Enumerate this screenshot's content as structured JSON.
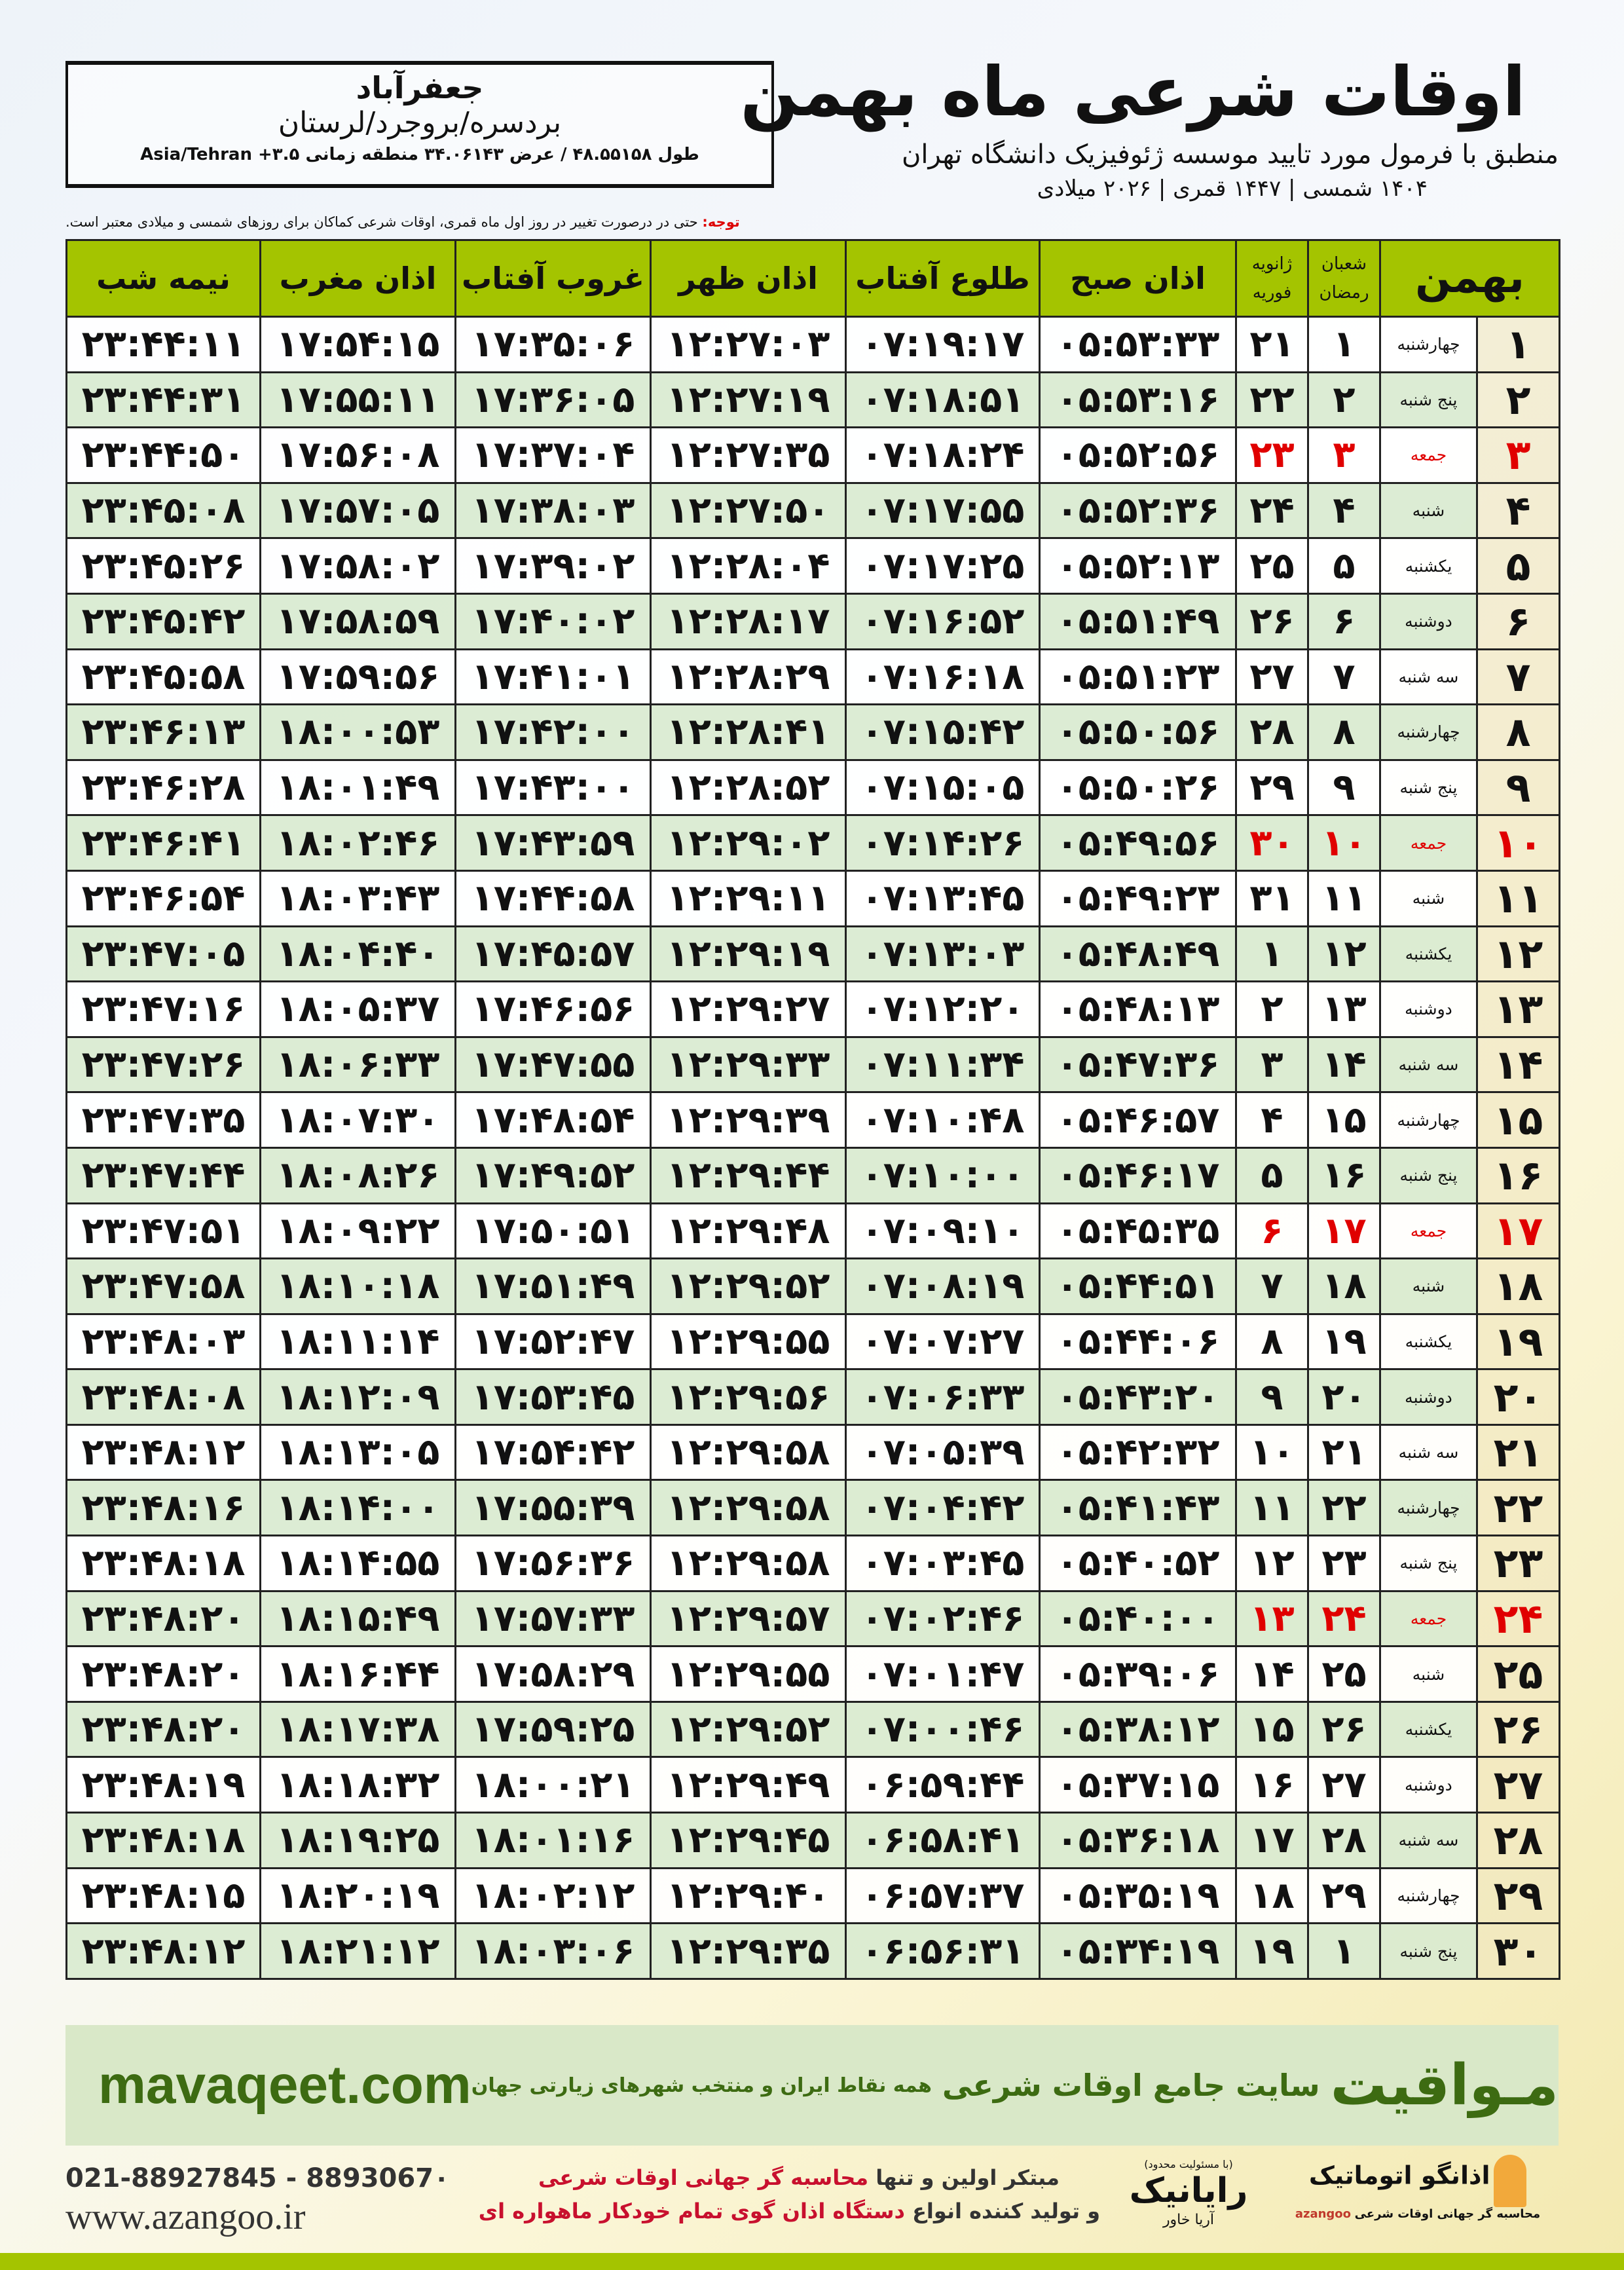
{
  "location": {
    "city": "جعفرآباد",
    "province": "بردسره/بروجرد/لرستان",
    "coords": "طول ۴۸.۵۵۱۵۸ / عرض ۳۴.۰۶۱۴۳ منطقه زمانی ۳.۵+ Asia/Tehran"
  },
  "header": {
    "title": "اوقات شرعی ماه بهمن",
    "subtitle": "منطبق با فرمول مورد تایید موسسه ژئوفیزیک دانشگاه تهران",
    "years": "۱۴۰۴ شمسی | ۱۴۴۷ قمری | ۲۰۲۶ میلادی"
  },
  "note": {
    "label": "توجه:",
    "text": " حتی در درصورت تغییر در روز اول ماه قمری، اوقات شرعی کماکان برای روزهای شمسی و میلادی معتبر است."
  },
  "columns": {
    "month": "بهمن",
    "hijri_1": "شعبان",
    "hijri_2": "رمضان",
    "greg_1": "ژانویه",
    "greg_2": "فوریه",
    "fajr": "اذان صبح",
    "sunrise": "طلوع آفتاب",
    "dhuhr": "اذان ظهر",
    "sunset": "غروب آفتاب",
    "maghrib": "اذان مغرب",
    "midnight": "نیمه شب"
  },
  "holiday_color": "#e00000",
  "header_color": "#a4c400",
  "rows": [
    [
      "۱",
      "چهارشنبه",
      "۱",
      "۲۱",
      "۰۵:۵۳:۳۳",
      "۰۷:۱۹:۱۷",
      "۱۲:۲۷:۰۳",
      "۱۷:۳۵:۰۶",
      "۱۷:۵۴:۱۵",
      "۲۳:۴۴:۱۱"
    ],
    [
      "۲",
      "پنج شنبه",
      "۲",
      "۲۲",
      "۰۵:۵۳:۱۶",
      "۰۷:۱۸:۵۱",
      "۱۲:۲۷:۱۹",
      "۱۷:۳۶:۰۵",
      "۱۷:۵۵:۱۱",
      "۲۳:۴۴:۳۱"
    ],
    [
      "۳",
      "جمعه",
      "۳",
      "۲۳",
      "۰۵:۵۲:۵۶",
      "۰۷:۱۸:۲۴",
      "۱۲:۲۷:۳۵",
      "۱۷:۳۷:۰۴",
      "۱۷:۵۶:۰۸",
      "۲۳:۴۴:۵۰"
    ],
    [
      "۴",
      "شنبه",
      "۴",
      "۲۴",
      "۰۵:۵۲:۳۶",
      "۰۷:۱۷:۵۵",
      "۱۲:۲۷:۵۰",
      "۱۷:۳۸:۰۳",
      "۱۷:۵۷:۰۵",
      "۲۳:۴۵:۰۸"
    ],
    [
      "۵",
      "یکشنبه",
      "۵",
      "۲۵",
      "۰۵:۵۲:۱۳",
      "۰۷:۱۷:۲۵",
      "۱۲:۲۸:۰۴",
      "۱۷:۳۹:۰۲",
      "۱۷:۵۸:۰۲",
      "۲۳:۴۵:۲۶"
    ],
    [
      "۶",
      "دوشنبه",
      "۶",
      "۲۶",
      "۰۵:۵۱:۴۹",
      "۰۷:۱۶:۵۲",
      "۱۲:۲۸:۱۷",
      "۱۷:۴۰:۰۲",
      "۱۷:۵۸:۵۹",
      "۲۳:۴۵:۴۲"
    ],
    [
      "۷",
      "سه شنبه",
      "۷",
      "۲۷",
      "۰۵:۵۱:۲۳",
      "۰۷:۱۶:۱۸",
      "۱۲:۲۸:۲۹",
      "۱۷:۴۱:۰۱",
      "۱۷:۵۹:۵۶",
      "۲۳:۴۵:۵۸"
    ],
    [
      "۸",
      "چهارشنبه",
      "۸",
      "۲۸",
      "۰۵:۵۰:۵۶",
      "۰۷:۱۵:۴۲",
      "۱۲:۲۸:۴۱",
      "۱۷:۴۲:۰۰",
      "۱۸:۰۰:۵۳",
      "۲۳:۴۶:۱۳"
    ],
    [
      "۹",
      "پنج شنبه",
      "۹",
      "۲۹",
      "۰۵:۵۰:۲۶",
      "۰۷:۱۵:۰۵",
      "۱۲:۲۸:۵۲",
      "۱۷:۴۳:۰۰",
      "۱۸:۰۱:۴۹",
      "۲۳:۴۶:۲۸"
    ],
    [
      "۱۰",
      "جمعه",
      "۱۰",
      "۳۰",
      "۰۵:۴۹:۵۶",
      "۰۷:۱۴:۲۶",
      "۱۲:۲۹:۰۲",
      "۱۷:۴۳:۵۹",
      "۱۸:۰۲:۴۶",
      "۲۳:۴۶:۴۱"
    ],
    [
      "۱۱",
      "شنبه",
      "۱۱",
      "۳۱",
      "۰۵:۴۹:۲۳",
      "۰۷:۱۳:۴۵",
      "۱۲:۲۹:۱۱",
      "۱۷:۴۴:۵۸",
      "۱۸:۰۳:۴۳",
      "۲۳:۴۶:۵۴"
    ],
    [
      "۱۲",
      "یکشنبه",
      "۱۲",
      "۱",
      "۰۵:۴۸:۴۹",
      "۰۷:۱۳:۰۳",
      "۱۲:۲۹:۱۹",
      "۱۷:۴۵:۵۷",
      "۱۸:۰۴:۴۰",
      "۲۳:۴۷:۰۵"
    ],
    [
      "۱۳",
      "دوشنبه",
      "۱۳",
      "۲",
      "۰۵:۴۸:۱۳",
      "۰۷:۱۲:۲۰",
      "۱۲:۲۹:۲۷",
      "۱۷:۴۶:۵۶",
      "۱۸:۰۵:۳۷",
      "۲۳:۴۷:۱۶"
    ],
    [
      "۱۴",
      "سه شنبه",
      "۱۴",
      "۳",
      "۰۵:۴۷:۳۶",
      "۰۷:۱۱:۳۴",
      "۱۲:۲۹:۳۳",
      "۱۷:۴۷:۵۵",
      "۱۸:۰۶:۳۳",
      "۲۳:۴۷:۲۶"
    ],
    [
      "۱۵",
      "چهارشنبه",
      "۱۵",
      "۴",
      "۰۵:۴۶:۵۷",
      "۰۷:۱۰:۴۸",
      "۱۲:۲۹:۳۹",
      "۱۷:۴۸:۵۴",
      "۱۸:۰۷:۳۰",
      "۲۳:۴۷:۳۵"
    ],
    [
      "۱۶",
      "پنج شنبه",
      "۱۶",
      "۵",
      "۰۵:۴۶:۱۷",
      "۰۷:۱۰:۰۰",
      "۱۲:۲۹:۴۴",
      "۱۷:۴۹:۵۲",
      "۱۸:۰۸:۲۶",
      "۲۳:۴۷:۴۴"
    ],
    [
      "۱۷",
      "جمعه",
      "۱۷",
      "۶",
      "۰۵:۴۵:۳۵",
      "۰۷:۰۹:۱۰",
      "۱۲:۲۹:۴۸",
      "۱۷:۵۰:۵۱",
      "۱۸:۰۹:۲۲",
      "۲۳:۴۷:۵۱"
    ],
    [
      "۱۸",
      "شنبه",
      "۱۸",
      "۷",
      "۰۵:۴۴:۵۱",
      "۰۷:۰۸:۱۹",
      "۱۲:۲۹:۵۲",
      "۱۷:۵۱:۴۹",
      "۱۸:۱۰:۱۸",
      "۲۳:۴۷:۵۸"
    ],
    [
      "۱۹",
      "یکشنبه",
      "۱۹",
      "۸",
      "۰۵:۴۴:۰۶",
      "۰۷:۰۷:۲۷",
      "۱۲:۲۹:۵۵",
      "۱۷:۵۲:۴۷",
      "۱۸:۱۱:۱۴",
      "۲۳:۴۸:۰۳"
    ],
    [
      "۲۰",
      "دوشنبه",
      "۲۰",
      "۹",
      "۰۵:۴۳:۲۰",
      "۰۷:۰۶:۳۳",
      "۱۲:۲۹:۵۶",
      "۱۷:۵۳:۴۵",
      "۱۸:۱۲:۰۹",
      "۲۳:۴۸:۰۸"
    ],
    [
      "۲۱",
      "سه شنبه",
      "۲۱",
      "۱۰",
      "۰۵:۴۲:۳۲",
      "۰۷:۰۵:۳۹",
      "۱۲:۲۹:۵۸",
      "۱۷:۵۴:۴۲",
      "۱۸:۱۳:۰۵",
      "۲۳:۴۸:۱۲"
    ],
    [
      "۲۲",
      "چهارشنبه",
      "۲۲",
      "۱۱",
      "۰۵:۴۱:۴۳",
      "۰۷:۰۴:۴۲",
      "۱۲:۲۹:۵۸",
      "۱۷:۵۵:۳۹",
      "۱۸:۱۴:۰۰",
      "۲۳:۴۸:۱۶"
    ],
    [
      "۲۳",
      "پنج شنبه",
      "۲۳",
      "۱۲",
      "۰۵:۴۰:۵۲",
      "۰۷:۰۳:۴۵",
      "۱۲:۲۹:۵۸",
      "۱۷:۵۶:۳۶",
      "۱۸:۱۴:۵۵",
      "۲۳:۴۸:۱۸"
    ],
    [
      "۲۴",
      "جمعه",
      "۲۴",
      "۱۳",
      "۰۵:۴۰:۰۰",
      "۰۷:۰۲:۴۶",
      "۱۲:۲۹:۵۷",
      "۱۷:۵۷:۳۳",
      "۱۸:۱۵:۴۹",
      "۲۳:۴۸:۲۰"
    ],
    [
      "۲۵",
      "شنبه",
      "۲۵",
      "۱۴",
      "۰۵:۳۹:۰۶",
      "۰۷:۰۱:۴۷",
      "۱۲:۲۹:۵۵",
      "۱۷:۵۸:۲۹",
      "۱۸:۱۶:۴۴",
      "۲۳:۴۸:۲۰"
    ],
    [
      "۲۶",
      "یکشنبه",
      "۲۶",
      "۱۵",
      "۰۵:۳۸:۱۲",
      "۰۷:۰۰:۴۶",
      "۱۲:۲۹:۵۲",
      "۱۷:۵۹:۲۵",
      "۱۸:۱۷:۳۸",
      "۲۳:۴۸:۲۰"
    ],
    [
      "۲۷",
      "دوشنبه",
      "۲۷",
      "۱۶",
      "۰۵:۳۷:۱۵",
      "۰۶:۵۹:۴۴",
      "۱۲:۲۹:۴۹",
      "۱۸:۰۰:۲۱",
      "۱۸:۱۸:۳۲",
      "۲۳:۴۸:۱۹"
    ],
    [
      "۲۸",
      "سه شنبه",
      "۲۸",
      "۱۷",
      "۰۵:۳۶:۱۸",
      "۰۶:۵۸:۴۱",
      "۱۲:۲۹:۴۵",
      "۱۸:۰۱:۱۶",
      "۱۸:۱۹:۲۵",
      "۲۳:۴۸:۱۸"
    ],
    [
      "۲۹",
      "چهارشنبه",
      "۲۹",
      "۱۸",
      "۰۵:۳۵:۱۹",
      "۰۶:۵۷:۳۷",
      "۱۲:۲۹:۴۰",
      "۱۸:۰۲:۱۲",
      "۱۸:۲۰:۱۹",
      "۲۳:۴۸:۱۵"
    ],
    [
      "۳۰",
      "پنج شنبه",
      "۱",
      "۱۹",
      "۰۵:۳۴:۱۹",
      "۰۶:۵۶:۳۱",
      "۱۲:۲۹:۳۵",
      "۱۸:۰۳:۰۶",
      "۱۸:۲۱:۱۲",
      "۲۳:۴۸:۱۲"
    ]
  ],
  "holiday_rows": [
    3,
    10,
    17,
    24
  ],
  "footer": {
    "brand": "مـواقیت",
    "tagline": "سایت جامع اوقات شرعی",
    "tagline2": "همه نقاط ایران و منتخب شهرهای زیارتی جهان",
    "url": "mavaqeet.com"
  },
  "contact": {
    "phones": "021-88927845 - 8893067۰",
    "website": "www.azangoo.ir"
  },
  "promo": {
    "l1a": "مبتکر اولین و تنها ",
    "l1b": "محاسبه گر جهانی اوقات شرعی",
    "l2a": "و تولید کننده انواع ",
    "l2b": "دستگاه اذان گوی تمام خودکار ماهواره ای"
  },
  "logos": {
    "rayanik_note": "(با مسئولیت محدود)",
    "rayanik_sub": "آریا خاور",
    "rayanik": "رایانیک",
    "azangoo": "اذانگو اتوماتیک",
    "azangoo_sub": "محاسبه گر جهانی اوقات شرعی",
    "azangoo_latin": "azangoo"
  }
}
